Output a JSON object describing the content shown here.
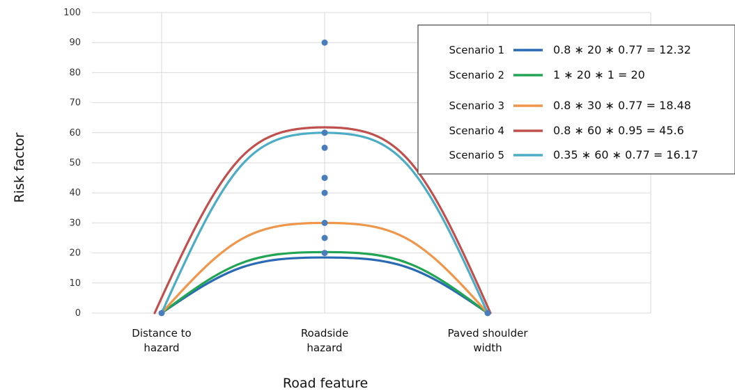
{
  "chart_data": {
    "type": "line",
    "xlabel": "Road feature",
    "ylabel": "Risk factor",
    "categories": [
      [
        "Distance to",
        "hazard"
      ],
      [
        "Roadside",
        "hazard"
      ],
      [
        "Paved shoulder",
        "width"
      ]
    ],
    "ylim": [
      0,
      100
    ],
    "yticks": [
      "0",
      "10",
      "20",
      "30",
      "40",
      "50",
      "60",
      "70",
      "80",
      "90",
      "100"
    ],
    "grid": true,
    "legend_position": "top-right",
    "series": [
      {
        "name": "Scenario 1",
        "formula": "0.8 ∗ 20 ∗ 0.77 = 12.32",
        "color": "#2a6ab4",
        "values": [
          0,
          18.5,
          0
        ]
      },
      {
        "name": "Scenario 2",
        "formula": "1 ∗ 20 ∗ 1 = 20",
        "color": "#21a453",
        "values": [
          0,
          20.3,
          0
        ]
      },
      {
        "name": "Scenario 3",
        "formula": "0.8 ∗ 30 ∗ 0.77 = 18.48",
        "color": "#f0964a",
        "values": [
          0,
          30,
          0
        ]
      },
      {
        "name": "Scenario 4",
        "formula": "0.8 ∗ 60 ∗ 0.95 = 45.6",
        "color": "#c0504d",
        "values": [
          0,
          61.8,
          0
        ]
      },
      {
        "name": "Scenario 5",
        "formula": "0.35 ∗ 60 ∗ 0.77 = 16.17",
        "color": "#4bacc6",
        "values": [
          0,
          60,
          0
        ]
      }
    ],
    "points": {
      "color": "#4a7ebb",
      "values": [
        {
          "x": 0,
          "y": 0
        },
        {
          "x": 1,
          "y": 90
        },
        {
          "x": 1,
          "y": 60
        },
        {
          "x": 1,
          "y": 55
        },
        {
          "x": 1,
          "y": 45
        },
        {
          "x": 1,
          "y": 40
        },
        {
          "x": 1,
          "y": 30
        },
        {
          "x": 1,
          "y": 25
        },
        {
          "x": 1,
          "y": 20
        },
        {
          "x": 2,
          "y": 0
        }
      ]
    }
  }
}
